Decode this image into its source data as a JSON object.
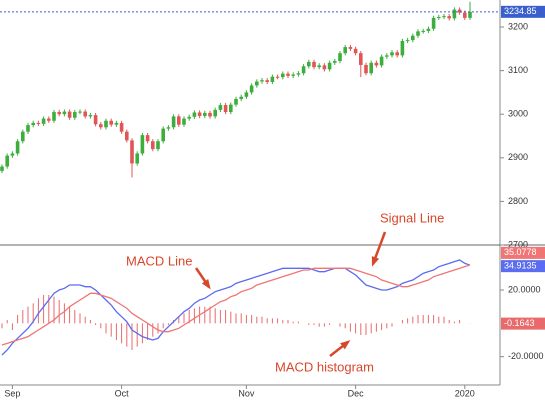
{
  "chart_data": [
    {
      "type": "candlestick",
      "up_color": "#3dae3d",
      "down_color": "#e05555",
      "last_color": "#3a5fcd",
      "ylim": [
        2700,
        3262
      ],
      "yticks": [
        2700,
        2800,
        2900,
        3000,
        3100,
        3200
      ],
      "open": [
        2870,
        2880,
        2905,
        2910,
        2938,
        2960,
        2975,
        2980,
        2978,
        2990,
        2985,
        3005,
        3000,
        3006,
        2992,
        3005,
        3006,
        2995,
        2998,
        2977,
        2970,
        2985,
        2976,
        2980,
        2960,
        2940,
        2887,
        2910,
        2952,
        2938,
        2920,
        2938,
        2967,
        2970,
        2995,
        2976,
        2990,
        2994,
        3004,
        2996,
        3003,
        2995,
        3010,
        3021,
        3005,
        3022,
        3035,
        3040,
        3050,
        3066,
        3075,
        3078,
        3074,
        3086,
        3085,
        3093,
        3088,
        3091,
        3094,
        3110,
        3120,
        3108,
        3112,
        3103,
        3118,
        3122,
        3140,
        3154,
        3150,
        3140,
        3113,
        3094,
        3118,
        3112,
        3132,
        3135,
        3142,
        3135,
        3168,
        3170,
        3180,
        3190,
        3191,
        3196,
        3221,
        3223,
        3225,
        3220,
        3240,
        3233,
        3221
      ],
      "high": [
        2885,
        2910,
        2915,
        2943,
        2965,
        2980,
        2985,
        2985,
        2995,
        2995,
        3010,
        3010,
        3011,
        3011,
        3010,
        3011,
        3011,
        3003,
        3003,
        2982,
        2990,
        2990,
        2985,
        2985,
        2965,
        2945,
        2915,
        2957,
        2957,
        2943,
        2943,
        2972,
        2975,
        3000,
        3000,
        2995,
        2999,
        3009,
        3009,
        3008,
        3008,
        3015,
        3026,
        3026,
        3027,
        3040,
        3045,
        3055,
        3071,
        3080,
        3083,
        3083,
        3091,
        3091,
        3098,
        3098,
        3096,
        3099,
        3115,
        3125,
        3125,
        3117,
        3117,
        3123,
        3127,
        3145,
        3159,
        3159,
        3155,
        3145,
        3118,
        3123,
        3123,
        3137,
        3140,
        3147,
        3147,
        3173,
        3175,
        3185,
        3195,
        3196,
        3201,
        3226,
        3228,
        3230,
        3230,
        3245,
        3245,
        3238,
        3258
      ],
      "low": [
        2865,
        2875,
        2900,
        2905,
        2933,
        2955,
        2970,
        2973,
        2973,
        2980,
        2980,
        2995,
        2995,
        2987,
        2987,
        3000,
        2990,
        2990,
        2972,
        2965,
        2965,
        2971,
        2971,
        2955,
        2935,
        2855,
        2882,
        2905,
        2933,
        2915,
        2915,
        2933,
        2962,
        2965,
        2971,
        2971,
        2985,
        2989,
        2991,
        2991,
        2990,
        2990,
        3005,
        3000,
        3000,
        3017,
        3030,
        3035,
        3045,
        3061,
        3070,
        3069,
        3069,
        3080,
        3080,
        3083,
        3083,
        3086,
        3089,
        3105,
        3103,
        3103,
        3098,
        3098,
        3113,
        3117,
        3135,
        3145,
        3135,
        3085,
        3089,
        3089,
        3107,
        3107,
        3127,
        3130,
        3130,
        3130,
        3163,
        3165,
        3175,
        3185,
        3186,
        3191,
        3216,
        3218,
        3215,
        3215,
        3228,
        3216,
        3216
      ],
      "close": [
        2880,
        2905,
        2910,
        2938,
        2960,
        2975,
        2980,
        2978,
        2990,
        2985,
        3005,
        3000,
        3006,
        2992,
        3005,
        3006,
        2995,
        2998,
        2977,
        2970,
        2985,
        2976,
        2980,
        2960,
        2940,
        2887,
        2910,
        2952,
        2938,
        2920,
        2938,
        2967,
        2970,
        2995,
        2976,
        2990,
        2994,
        3004,
        2996,
        3003,
        2995,
        3010,
        3021,
        3005,
        3022,
        3035,
        3040,
        3050,
        3066,
        3075,
        3078,
        3074,
        3086,
        3085,
        3093,
        3088,
        3091,
        3094,
        3110,
        3120,
        3108,
        3112,
        3103,
        3118,
        3122,
        3140,
        3154,
        3150,
        3140,
        3113,
        3094,
        3118,
        3112,
        3132,
        3135,
        3142,
        3135,
        3168,
        3170,
        3180,
        3190,
        3191,
        3196,
        3221,
        3223,
        3225,
        3220,
        3240,
        3233,
        3221,
        3234.85
      ]
    },
    {
      "type": "macd",
      "categories": [
        null,
        null,
        "Sep",
        null,
        null,
        null,
        null,
        null,
        null,
        null,
        null,
        null,
        null,
        null,
        null,
        null,
        null,
        null,
        null,
        null,
        null,
        null,
        null,
        "Oct",
        null,
        null,
        null,
        null,
        null,
        null,
        null,
        null,
        null,
        null,
        null,
        null,
        null,
        null,
        null,
        null,
        null,
        null,
        null,
        null,
        null,
        null,
        null,
        "Nov",
        null,
        null,
        null,
        null,
        null,
        null,
        null,
        null,
        null,
        null,
        null,
        null,
        null,
        null,
        null,
        null,
        null,
        null,
        null,
        null,
        "Dec",
        null,
        null,
        null,
        null,
        null,
        null,
        null,
        null,
        null,
        null,
        null,
        null,
        null,
        null,
        null,
        null,
        null,
        null,
        null,
        null,
        "2020",
        null
      ],
      "ylim": [
        -37,
        47
      ],
      "yticks": [
        {
          "value": 20,
          "label": "20.0000"
        },
        {
          "value": -20,
          "label": "-20.0000"
        }
      ],
      "series": [
        {
          "name": "MACD Line",
          "color": "#5a6cf0",
          "values": [
            -19,
            -16,
            -12,
            -9,
            -6,
            -3,
            1,
            6,
            10,
            14,
            18,
            20,
            21,
            23,
            23,
            23,
            22,
            22,
            20,
            17,
            14,
            11,
            7,
            4,
            1,
            -4,
            -6,
            -8,
            -9,
            -10,
            -9,
            -5,
            -2,
            1,
            4,
            7,
            9,
            12,
            14,
            15,
            17,
            19,
            20,
            21,
            22,
            24,
            25,
            26,
            27,
            28,
            29,
            30,
            31,
            32,
            33,
            33,
            33,
            33,
            33,
            33,
            32,
            31,
            31,
            32,
            33,
            33,
            33,
            31,
            29,
            26,
            23,
            22,
            21,
            20,
            20,
            21,
            22,
            24,
            25,
            26,
            28,
            30,
            31,
            32,
            34,
            35,
            36,
            37,
            38,
            36,
            34.9135
          ]
        },
        {
          "name": "Signal Line",
          "color": "#f07575",
          "values": [
            -13,
            -12,
            -11,
            -10,
            -9,
            -8,
            -6,
            -4,
            -2,
            0,
            2,
            5,
            7,
            10,
            12,
            14,
            16,
            18,
            18,
            17,
            16,
            15,
            13,
            11,
            9,
            6,
            4,
            2,
            0,
            -2,
            -4,
            -5,
            -5,
            -4,
            -3,
            -1,
            1,
            3,
            5,
            7,
            9,
            11,
            13,
            14,
            16,
            17,
            19,
            20,
            21,
            23,
            24,
            25,
            26,
            27,
            28,
            29,
            30,
            31,
            32,
            32,
            33,
            33,
            33,
            33,
            33,
            33,
            33,
            33,
            32,
            31,
            30,
            29,
            28,
            26,
            25,
            24,
            23,
            22,
            22,
            23,
            24,
            25,
            26,
            28,
            29,
            30,
            31,
            32,
            33,
            34,
            35.0778
          ]
        }
      ],
      "histogram": {
        "name": "MACD histogram",
        "color": "#e86a6a",
        "values": [
          -3,
          2,
          -4,
          5,
          8,
          10,
          12,
          15,
          17,
          17,
          16,
          14,
          12,
          10,
          8,
          6,
          4,
          2,
          -1,
          -3,
          -6,
          -8,
          -10,
          -12,
          -14,
          -16,
          -14,
          -12,
          -10,
          -8,
          -6,
          -3,
          -1,
          2,
          4,
          6,
          8,
          9,
          10,
          10,
          10,
          9,
          8,
          8,
          7,
          6,
          6,
          5,
          5,
          4,
          4,
          3,
          3,
          3,
          2,
          2,
          1,
          1,
          0,
          -1,
          -1,
          -2,
          -2,
          -1,
          0,
          -2,
          -3,
          -5,
          -6,
          -7,
          -7,
          -6,
          -5,
          -4,
          -3,
          -2,
          0,
          2,
          3,
          4,
          5,
          5,
          5,
          5,
          4,
          4,
          2,
          1,
          2,
          0,
          -0.1643
        ]
      }
    }
  ]
}
